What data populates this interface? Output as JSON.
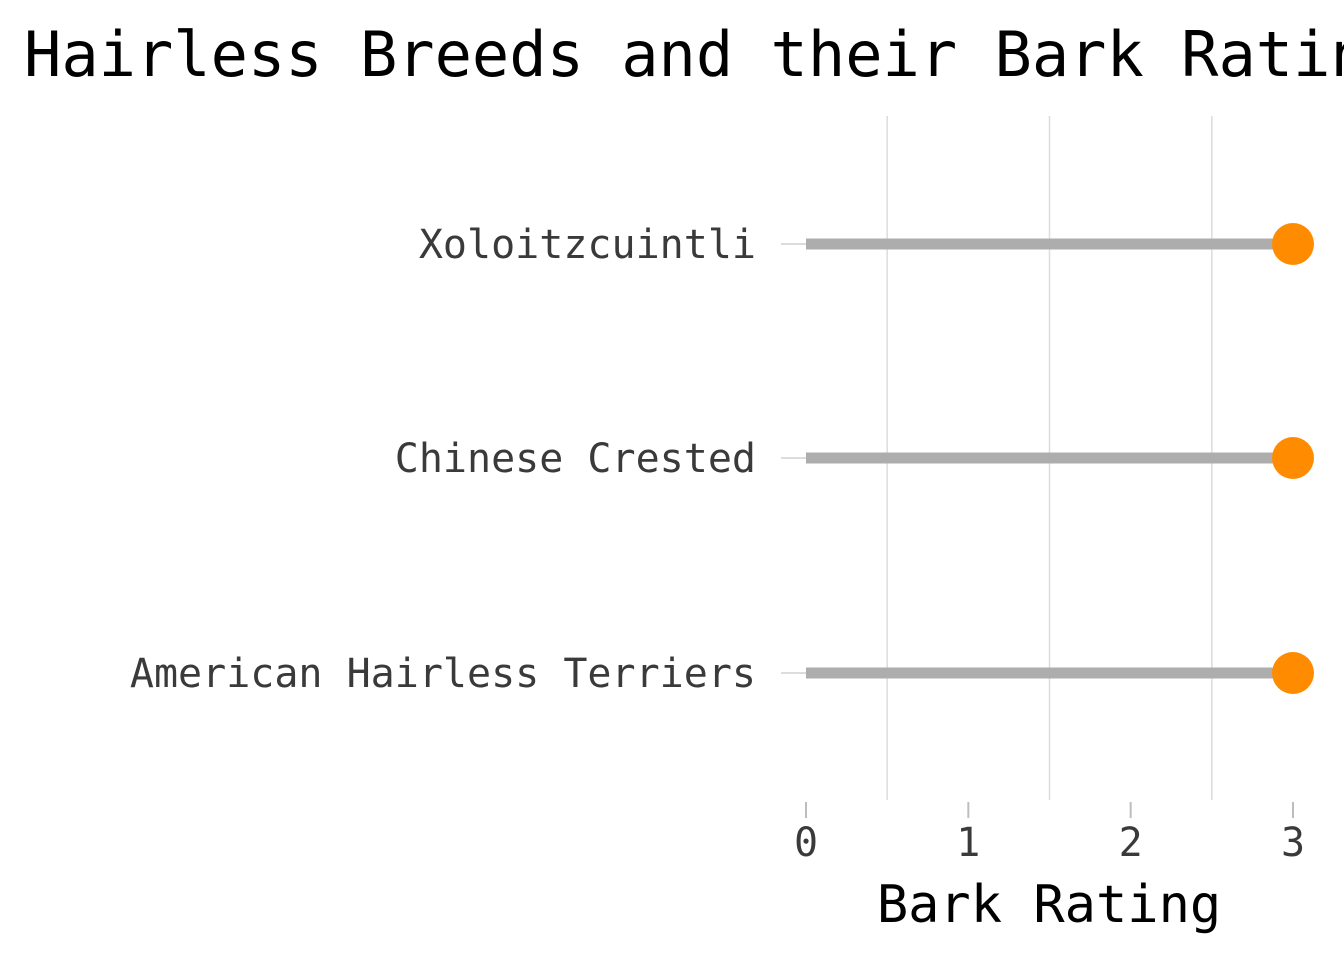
{
  "chart_data": {
    "type": "lollipop",
    "title": "Hairless Breeds and their Bark Ratings",
    "xlabel": "Bark Rating",
    "ylabel": "",
    "categories": [
      "Xoloitzcuintli",
      "Chinese Crested",
      "American Hairless Terriers"
    ],
    "values": [
      3,
      3,
      3
    ],
    "xlim": [
      0,
      3
    ],
    "x_ticks": [
      "0",
      "1",
      "2",
      "3"
    ],
    "grid": "vertical-minor",
    "colors": {
      "stem": "#adadad",
      "point": "#ff8c00",
      "grid": "#dcdcdc",
      "tick": "#bdbdbd"
    }
  }
}
